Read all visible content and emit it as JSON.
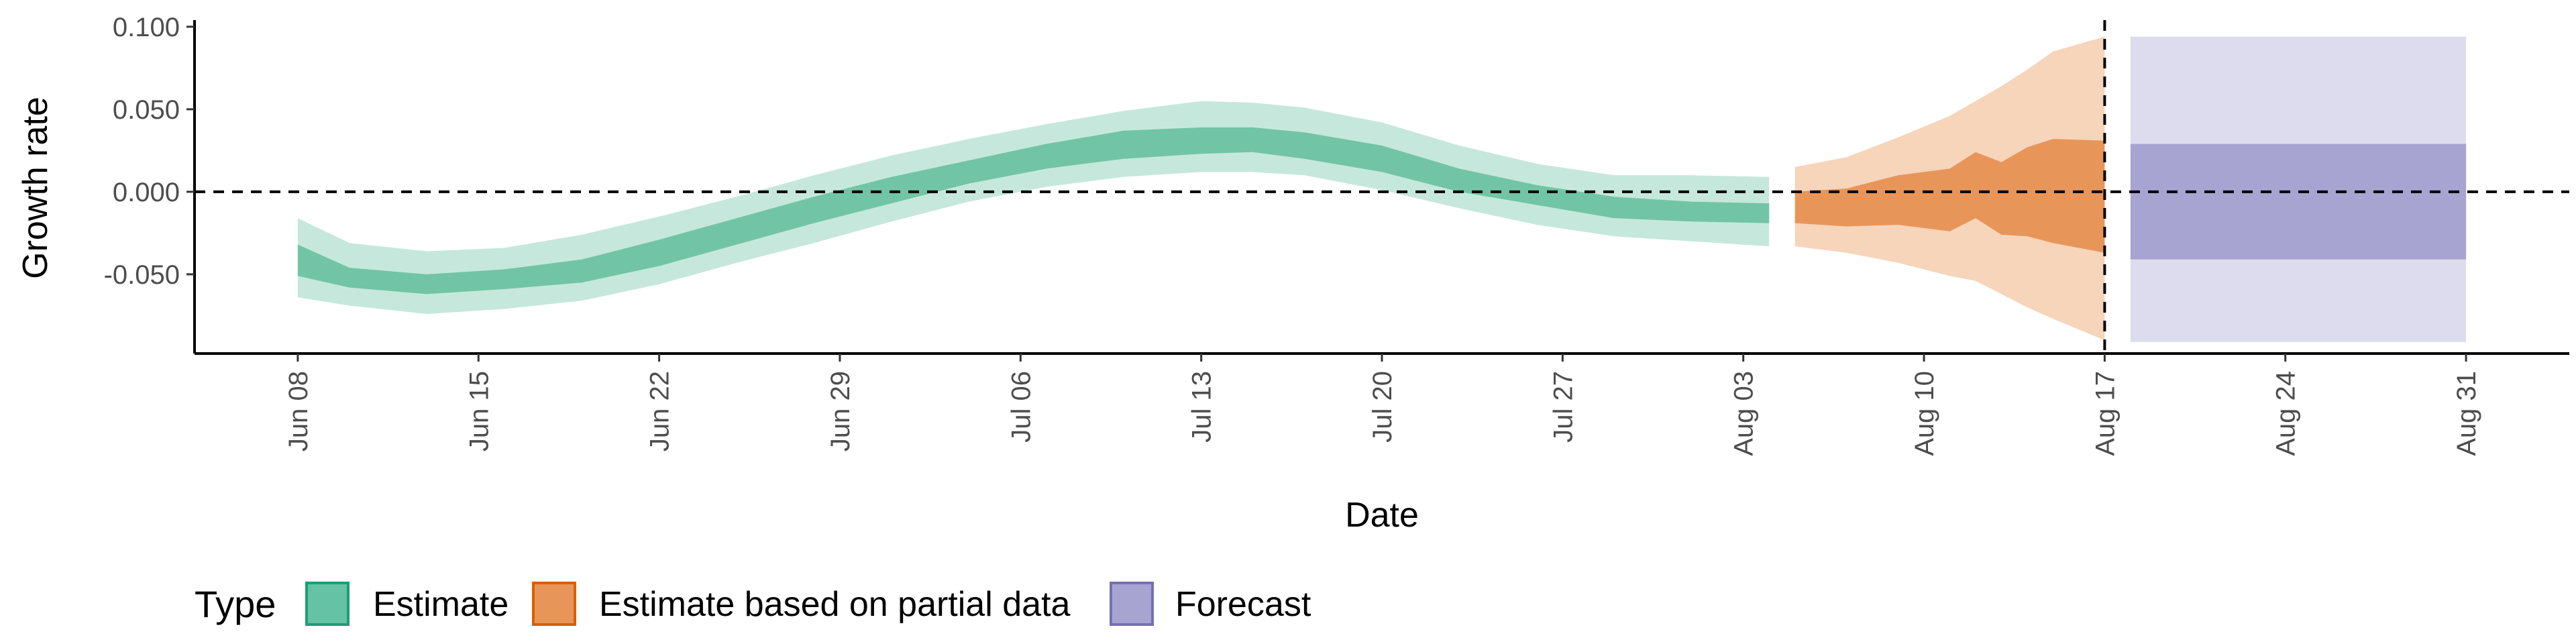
{
  "chart_data": {
    "type": "area",
    "xlabel": "Date",
    "ylabel": "Growth rate",
    "x_tick_labels": [
      "Jun 08",
      "Jun 15",
      "Jun 22",
      "Jun 29",
      "Jul 06",
      "Jul 13",
      "Jul 20",
      "Jul 27",
      "Aug 03",
      "Aug 10",
      "Aug 17",
      "Aug 24",
      "Aug 31"
    ],
    "y_tick_labels": [
      "-0.050",
      "0.000",
      "0.050",
      "0.100"
    ],
    "ylim": [
      -0.098,
      0.104
    ],
    "xlim": [
      "2020-06-04",
      "2020-09-04"
    ],
    "reference_lines": {
      "y": 0.0,
      "x": "2020-08-17",
      "style": "dashed"
    },
    "legend": {
      "title": "Type",
      "position": "bottom-left"
    },
    "series": [
      {
        "name": "Estimate",
        "color": "#1b9e77",
        "x": [
          "2020-06-08",
          "2020-06-10",
          "2020-06-13",
          "2020-06-16",
          "2020-06-19",
          "2020-06-22",
          "2020-06-25",
          "2020-06-28",
          "2020-07-01",
          "2020-07-04",
          "2020-07-07",
          "2020-07-10",
          "2020-07-13",
          "2020-07-15",
          "2020-07-17",
          "2020-07-20",
          "2020-07-23",
          "2020-07-26",
          "2020-07-29",
          "2020-08-01",
          "2020-08-04"
        ],
        "median": [
          -0.042,
          -0.052,
          -0.056,
          -0.053,
          -0.048,
          -0.037,
          -0.024,
          -0.011,
          0.001,
          0.012,
          0.022,
          0.029,
          0.031,
          0.032,
          0.03,
          0.02,
          0.007,
          -0.002,
          -0.009,
          -0.013,
          -0.013
        ],
        "inner_lower": [
          -0.051,
          -0.058,
          -0.062,
          -0.059,
          -0.055,
          -0.045,
          -0.032,
          -0.019,
          -0.007,
          0.005,
          0.014,
          0.02,
          0.023,
          0.024,
          0.02,
          0.012,
          0.0,
          -0.008,
          -0.016,
          -0.018,
          -0.019
        ],
        "inner_upper": [
          -0.032,
          -0.046,
          -0.05,
          -0.047,
          -0.041,
          -0.029,
          -0.016,
          -0.003,
          0.009,
          0.019,
          0.029,
          0.037,
          0.039,
          0.039,
          0.036,
          0.028,
          0.014,
          0.004,
          -0.003,
          -0.006,
          -0.007
        ],
        "outer_lower": [
          -0.064,
          -0.069,
          -0.074,
          -0.071,
          -0.066,
          -0.056,
          -0.043,
          -0.031,
          -0.018,
          -0.006,
          0.003,
          0.009,
          0.012,
          0.012,
          0.01,
          0.001,
          -0.01,
          -0.02,
          -0.027,
          -0.03,
          -0.033
        ],
        "outer_upper": [
          -0.016,
          -0.031,
          -0.036,
          -0.034,
          -0.026,
          -0.015,
          -0.003,
          0.01,
          0.022,
          0.032,
          0.041,
          0.049,
          0.055,
          0.054,
          0.051,
          0.042,
          0.028,
          0.017,
          0.01,
          0.01,
          0.009
        ]
      },
      {
        "name": "Estimate based on partial data",
        "color": "#d95f02",
        "x": [
          "2020-08-05",
          "2020-08-07",
          "2020-08-09",
          "2020-08-11",
          "2020-08-12",
          "2020-08-13",
          "2020-08-14",
          "2020-08-15",
          "2020-08-17"
        ],
        "median": [
          -0.006,
          -0.006,
          -0.004,
          -0.004,
          0.004,
          0.001,
          0.005,
          0.008,
          0.001
        ],
        "inner_lower": [
          -0.019,
          -0.021,
          -0.02,
          -0.024,
          -0.016,
          -0.026,
          -0.027,
          -0.031,
          -0.037
        ],
        "inner_upper": [
          0.0,
          0.002,
          0.01,
          0.014,
          0.024,
          0.018,
          0.027,
          0.032,
          0.031
        ],
        "outer_lower": [
          -0.033,
          -0.037,
          -0.043,
          -0.051,
          -0.054,
          -0.062,
          -0.07,
          -0.077,
          -0.09
        ],
        "outer_upper": [
          0.015,
          0.021,
          0.033,
          0.046,
          0.055,
          0.064,
          0.074,
          0.085,
          0.094
        ]
      },
      {
        "name": "Forecast",
        "color": "#7570b3",
        "x": [
          "2020-08-18",
          "2020-08-31"
        ],
        "inner_lower": [
          -0.041,
          -0.041
        ],
        "inner_upper": [
          0.029,
          0.029
        ],
        "outer_lower": [
          -0.091,
          -0.091
        ],
        "outer_upper": [
          0.094,
          0.094
        ]
      }
    ]
  }
}
